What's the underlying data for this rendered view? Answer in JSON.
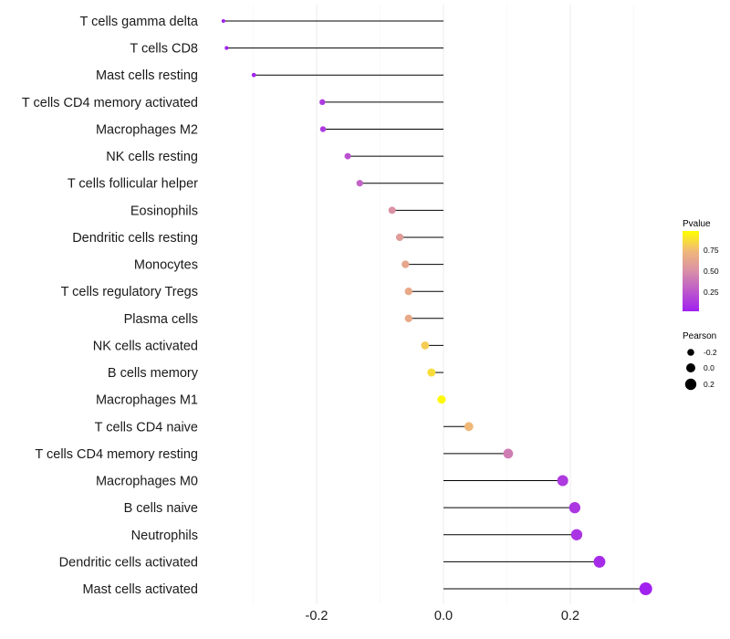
{
  "chart_data": {
    "type": "lollipop",
    "title": "",
    "xlabel": "",
    "ylabel": "",
    "xlim": [
      -0.37,
      0.36
    ],
    "x_ticks": [
      -0.2,
      0.0,
      0.2
    ],
    "x_tick_labels": [
      "-0.2",
      "0.0",
      "0.2"
    ],
    "categories": [
      "T cells gamma delta",
      "T cells CD8",
      "Mast cells resting",
      "T cells CD4 memory activated",
      "Macrophages M2",
      "NK cells resting",
      "T cells follicular helper",
      "Eosinophils",
      "Dendritic cells resting",
      "Monocytes",
      "T cells regulatory  Tregs ",
      "Plasma cells",
      "NK cells activated",
      "B cells memory",
      "Macrophages M1",
      "T cells CD4 naive",
      "T cells CD4 memory resting",
      "Macrophages M0",
      "B cells naive",
      "Neutrophils",
      "Dendritic cells activated",
      "Mast cells activated"
    ],
    "pearson": [
      -0.347,
      -0.342,
      -0.299,
      -0.191,
      -0.19,
      -0.151,
      -0.132,
      -0.081,
      -0.069,
      -0.06,
      -0.055,
      -0.055,
      -0.029,
      -0.019,
      -0.003,
      0.04,
      0.102,
      0.188,
      0.207,
      0.21,
      0.246,
      0.319
    ],
    "pvalue": [
      0.01,
      0.01,
      0.02,
      0.12,
      0.12,
      0.22,
      0.3,
      0.52,
      0.58,
      0.64,
      0.66,
      0.66,
      0.82,
      0.88,
      0.98,
      0.75,
      0.42,
      0.12,
      0.1,
      0.09,
      0.05,
      0.01
    ],
    "color_legend": {
      "title": "Pvalue",
      "ticks": [
        "0.75",
        "0.50",
        "0.25"
      ],
      "tick_values": [
        0.75,
        0.5,
        0.25
      ],
      "low_color": "#a020f0",
      "high_color": "#ffff00"
    },
    "size_legend": {
      "title": "Pearson",
      "labels": [
        "-0.2",
        "0.0",
        "0.2"
      ],
      "values": [
        -0.2,
        0.0,
        0.2
      ]
    },
    "grid": true
  }
}
